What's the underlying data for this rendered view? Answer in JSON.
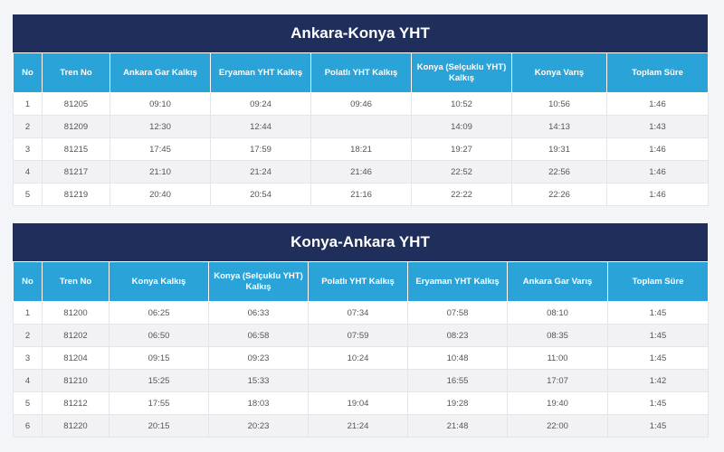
{
  "tables": [
    {
      "title": "Ankara-Konya YHT",
      "headers": [
        "No",
        "Tren No",
        "Ankara Gar Kalkış",
        "Eryaman YHT Kalkış",
        "Polatlı YHT Kalkış",
        "Konya (Selçuklu YHT) Kalkış",
        "Konya Varış",
        "Toplam Süre"
      ],
      "rows": [
        [
          "1",
          "81205",
          "09:10",
          "09:24",
          "09:46",
          "10:52",
          "10:56",
          "1:46"
        ],
        [
          "2",
          "81209",
          "12:30",
          "12:44",
          "",
          "14:09",
          "14:13",
          "1:43"
        ],
        [
          "3",
          "81215",
          "17:45",
          "17:59",
          "18:21",
          "19:27",
          "19:31",
          "1:46"
        ],
        [
          "4",
          "81217",
          "21:10",
          "21:24",
          "21:46",
          "22:52",
          "22:56",
          "1:46"
        ],
        [
          "5",
          "81219",
          "20:40",
          "20:54",
          "21:16",
          "22:22",
          "22:26",
          "1:46"
        ]
      ]
    },
    {
      "title": "Konya-Ankara YHT",
      "headers": [
        "No",
        "Tren No",
        "Konya Kalkış",
        "Konya (Selçuklu YHT) Kalkış",
        "Polatlı YHT Kalkış",
        "Eryaman YHT Kalkış",
        "Ankara Gar Varış",
        "Toplam Süre"
      ],
      "rows": [
        [
          "1",
          "81200",
          "06:25",
          "06:33",
          "07:34",
          "07:58",
          "08:10",
          "1:45"
        ],
        [
          "2",
          "81202",
          "06:50",
          "06:58",
          "07:59",
          "08:23",
          "08:35",
          "1:45"
        ],
        [
          "3",
          "81204",
          "09:15",
          "09:23",
          "10:24",
          "10:48",
          "11:00",
          "1:45"
        ],
        [
          "4",
          "81210",
          "15:25",
          "15:33",
          "",
          "16:55",
          "17:07",
          "1:42"
        ],
        [
          "5",
          "81212",
          "17:55",
          "18:03",
          "19:04",
          "19:28",
          "19:40",
          "1:45"
        ],
        [
          "6",
          "81220",
          "20:15",
          "20:23",
          "21:24",
          "21:48",
          "22:00",
          "1:45"
        ]
      ]
    }
  ]
}
